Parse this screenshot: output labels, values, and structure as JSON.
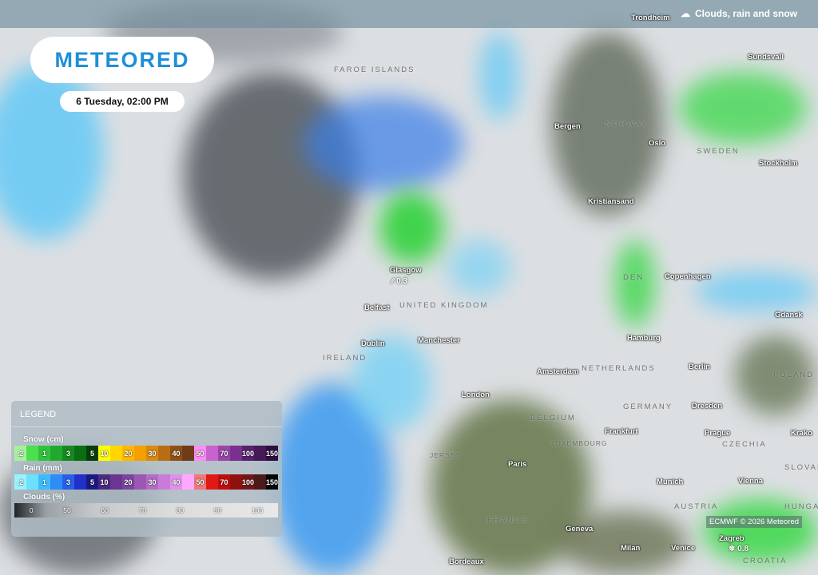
{
  "header": {
    "layer_title": "Clouds, rain and snow",
    "layer_icon": "cloud-rain-snow-icon"
  },
  "logo": "METEORED",
  "date": "6 Tuesday, 02:00 PM",
  "attribution": "ECMWF © 2026 Meteored",
  "cities": [
    "Trondheim",
    "Sundsvall",
    "Bergen",
    "Oslo",
    "Stockholm",
    "Kristiansand",
    "Copenhagen",
    "Glasgow",
    "Belfast",
    "Dublin",
    "Manchester",
    "Hamburg",
    "Amsterdam",
    "Berlin",
    "Gdansk",
    "London",
    "Frankfurt",
    "Dresden",
    "Prague",
    "Krako",
    "Paris",
    "Munich",
    "Vienna",
    "Geneva",
    "Milan",
    "Venice",
    "Zagreb",
    "Bordeaux"
  ],
  "countries": [
    "FAROE ISLANDS",
    "NORWAY",
    "SWEDEN",
    "DEN",
    "UNITED KINGDOM",
    "IRELAND",
    "NETHERLANDS",
    "BELGIUM",
    "GERMANY",
    "LUXEMBOURG",
    "CZECHIA",
    "POLAND",
    "SLOVAKIA",
    "JERSEY",
    "FRANCE",
    "AUSTRIA",
    "HUNGARY",
    "CROATIA"
  ],
  "values": {
    "glasgow": "⁄⁄ 0.3",
    "zagreb": "❄ 0.8"
  },
  "legend": {
    "title": "LEGEND",
    "snow": {
      "label": "Snow (cm)",
      "cells": [
        {
          "t": ".2",
          "c": "#a6f0a0"
        },
        {
          "t": "",
          "c": "#4be04f"
        },
        {
          "t": "1",
          "c": "#2ec43a"
        },
        {
          "t": "",
          "c": "#21a92d"
        },
        {
          "t": "3",
          "c": "#148a20"
        },
        {
          "t": "",
          "c": "#0a6e14"
        },
        {
          "t": "5",
          "c": "#063f0c"
        },
        {
          "t": "10",
          "c": "#ffff00"
        },
        {
          "t": "",
          "c": "#ffd700"
        },
        {
          "t": "20",
          "c": "#ffb800"
        },
        {
          "t": "",
          "c": "#f5a000"
        },
        {
          "t": "30",
          "c": "#d98a10"
        },
        {
          "t": "",
          "c": "#b86d14"
        },
        {
          "t": "40",
          "c": "#8f5018"
        },
        {
          "t": "",
          "c": "#6e3d18"
        },
        {
          "t": "50",
          "c": "#ff8cf5"
        },
        {
          "t": "",
          "c": "#c862cc"
        },
        {
          "t": "70",
          "c": "#9a45a8"
        },
        {
          "t": "",
          "c": "#7a3090"
        },
        {
          "t": "100",
          "c": "#58206e"
        },
        {
          "t": "",
          "c": "#451858"
        },
        {
          "t": "150",
          "c": "#2e0e40"
        }
      ]
    },
    "rain": {
      "label": "Rain (mm)",
      "cells": [
        {
          "t": ".2",
          "c": "#9af2ff"
        },
        {
          "t": "",
          "c": "#6ee0ff"
        },
        {
          "t": "1",
          "c": "#3cbcff"
        },
        {
          "t": "",
          "c": "#2e8cf6"
        },
        {
          "t": "3",
          "c": "#2a5ee8"
        },
        {
          "t": "",
          "c": "#2030c8"
        },
        {
          "t": "5",
          "c": "#1a1a80"
        },
        {
          "t": "10",
          "c": "#4a2a80"
        },
        {
          "t": "",
          "c": "#6a3690"
        },
        {
          "t": "20",
          "c": "#7e44a0"
        },
        {
          "t": "",
          "c": "#9a58b4"
        },
        {
          "t": "30",
          "c": "#b46cc6"
        },
        {
          "t": "",
          "c": "#c87cd8"
        },
        {
          "t": "40",
          "c": "#e092ea"
        },
        {
          "t": "",
          "c": "#ffa8ff"
        },
        {
          "t": "50",
          "c": "#f07878"
        },
        {
          "t": "",
          "c": "#e01818"
        },
        {
          "t": "70",
          "c": "#c00c0c"
        },
        {
          "t": "",
          "c": "#901010"
        },
        {
          "t": "100",
          "c": "#701818"
        },
        {
          "t": "",
          "c": "#4a1a1a"
        },
        {
          "t": "150",
          "c": "#050505"
        }
      ]
    },
    "clouds": {
      "label": "Clouds (%)",
      "ticks": [
        "0",
        "50",
        "60",
        "70",
        "80",
        "90",
        "100"
      ]
    }
  }
}
